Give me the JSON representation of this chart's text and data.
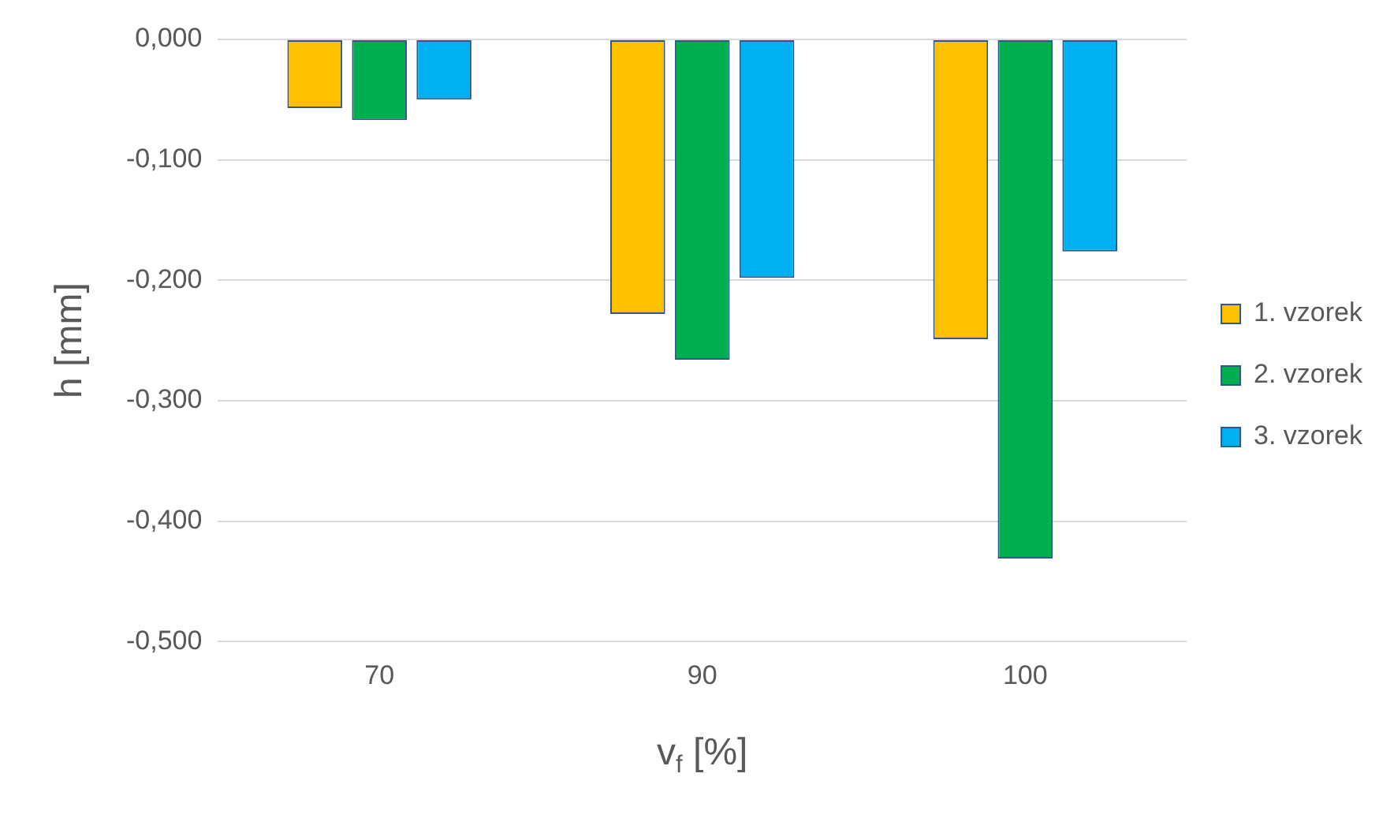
{
  "chart_data": {
    "type": "bar",
    "xlabel": "v$_{f}$ [%]",
    "ylabel": "h [mm]",
    "categories": [
      "70",
      "90",
      "100"
    ],
    "series": [
      {
        "name": "1. vzorek",
        "color": "#ffc000",
        "values": [
          -0.057,
          -0.228,
          -0.249
        ]
      },
      {
        "name": "2. vzorek",
        "color": "#00b050",
        "values": [
          -0.067,
          -0.266,
          -0.431
        ]
      },
      {
        "name": "3. vzorek",
        "color": "#00b0f0",
        "values": [
          -0.05,
          -0.198,
          -0.176
        ]
      }
    ],
    "ylim": [
      -0.5,
      0
    ],
    "yticks": [
      {
        "value": 0,
        "label": "0,000"
      },
      {
        "value": -0.1,
        "label": "-0,100"
      },
      {
        "value": -0.2,
        "label": "-0,200"
      },
      {
        "value": -0.3,
        "label": "-0,300"
      },
      {
        "value": -0.4,
        "label": "-0,400"
      },
      {
        "value": -0.5,
        "label": "-0,500"
      }
    ],
    "grid": "y",
    "legend": "right"
  }
}
